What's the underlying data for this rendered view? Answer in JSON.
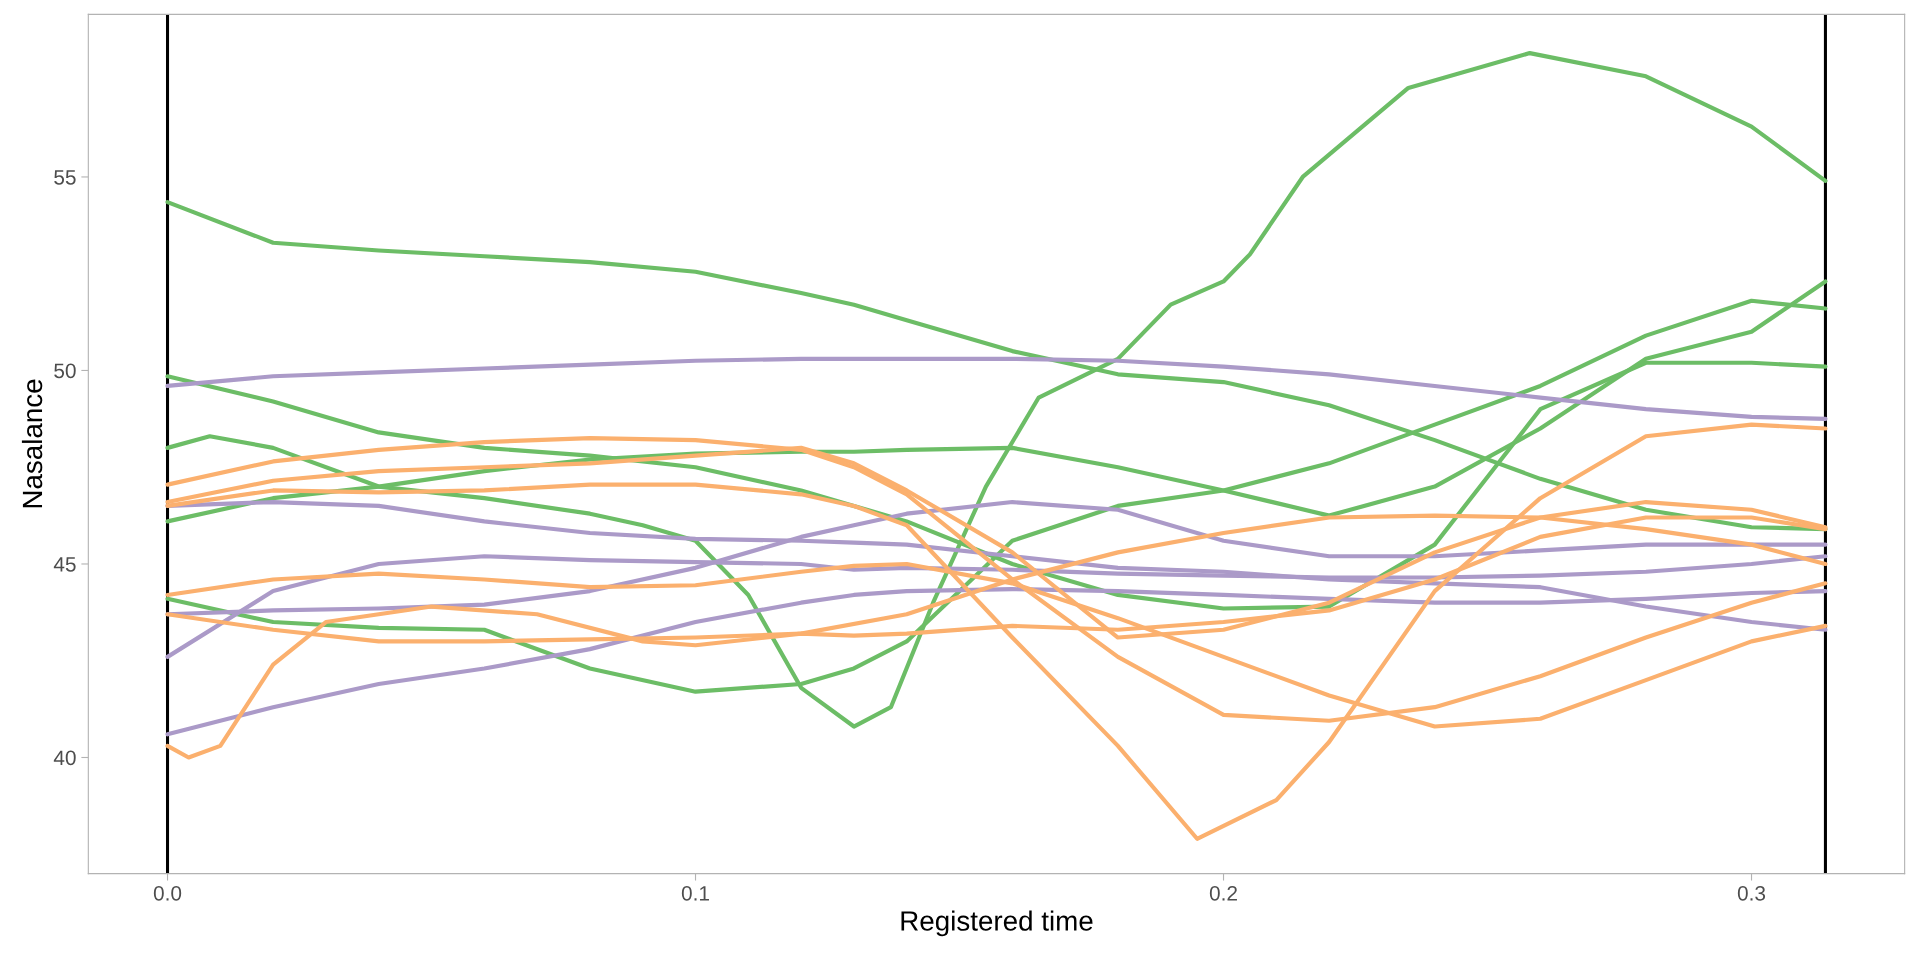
{
  "chart_data": {
    "type": "line",
    "xlabel": "Registered time",
    "ylabel": "Nasalance",
    "grid": false,
    "line_style": "solid",
    "marker": "none",
    "xlim": [
      -0.015,
      0.329
    ],
    "ylim": [
      37.0,
      59.2
    ],
    "xticks": [
      {
        "value": 0,
        "label": "0.0"
      },
      0.1,
      0.2,
      0.3
    ],
    "yticks": [
      40,
      45,
      50,
      55
    ],
    "ref_lines": [
      {
        "axis": "x",
        "value": 0,
        "color": "#000000"
      },
      {
        "axis": "x",
        "value": 0.314,
        "color": "#000000"
      }
    ],
    "x": [
      0,
      0.02,
      0.04,
      0.06,
      0.08,
      0.1,
      0.12,
      0.13,
      0.14,
      0.16,
      0.18,
      0.2,
      0.22,
      0.24,
      0.26,
      0.28,
      0.3,
      0.314
    ],
    "series": [
      {
        "color": "#6cbd66",
        "values": [
          54.35,
          53.3,
          53.1,
          52.95,
          52.8,
          52.55,
          52.0,
          51.7,
          51.3,
          50.5,
          49.9,
          49.7,
          49.1,
          48.2,
          47.2,
          46.4,
          45.95,
          45.9
        ]
      },
      {
        "color": "#6cbd66",
        "values": [
          49.85,
          49.2,
          48.4,
          48.0,
          47.8,
          47.5,
          46.9,
          46.5,
          46.1,
          45.0,
          44.2,
          43.85,
          43.9,
          45.5,
          49.0,
          50.2,
          50.2,
          50.1
        ]
      },
      {
        "color": "#6cbd66",
        "x": [
          0,
          0.008,
          0.02,
          0.04,
          0.06,
          0.08,
          0.09,
          0.1,
          0.11,
          0.12,
          0.13,
          0.137,
          0.145,
          0.155,
          0.165,
          0.18,
          0.19,
          0.2,
          0.205,
          0.215,
          0.235,
          0.258,
          0.28,
          0.3,
          0.314
        ],
        "values": [
          48.0,
          48.3,
          48.0,
          47.0,
          46.7,
          46.3,
          46.0,
          45.6,
          44.2,
          41.8,
          40.8,
          41.3,
          44.0,
          47.0,
          49.3,
          50.3,
          51.7,
          52.3,
          53.0,
          55.0,
          57.3,
          58.2,
          57.6,
          56.3,
          54.9
        ]
      },
      {
        "color": "#6cbd66",
        "values": [
          46.1,
          46.7,
          47.0,
          47.4,
          47.7,
          47.85,
          47.9,
          47.9,
          47.95,
          48.0,
          47.5,
          46.9,
          46.25,
          47.0,
          48.5,
          50.3,
          51.0,
          52.3
        ]
      },
      {
        "color": "#6cbd66",
        "values": [
          44.1,
          43.5,
          43.35,
          43.3,
          42.3,
          41.7,
          41.9,
          42.3,
          43.0,
          45.6,
          46.5,
          46.9,
          47.6,
          48.6,
          49.6,
          50.9,
          51.8,
          51.6
        ]
      },
      {
        "color": "#ab9ac8",
        "values": [
          49.6,
          49.85,
          49.95,
          50.05,
          50.15,
          50.25,
          50.3,
          50.3,
          50.3,
          50.3,
          50.25,
          50.1,
          49.9,
          49.6,
          49.3,
          49.0,
          48.8,
          48.75
        ]
      },
      {
        "color": "#ab9ac8",
        "values": [
          46.5,
          46.6,
          46.5,
          46.1,
          45.8,
          45.65,
          45.6,
          45.55,
          45.5,
          45.2,
          44.9,
          44.8,
          44.6,
          44.5,
          44.4,
          43.9,
          43.5,
          43.3
        ]
      },
      {
        "color": "#ab9ac8",
        "values": [
          43.7,
          43.8,
          43.85,
          43.95,
          44.3,
          44.9,
          45.7,
          46.0,
          46.3,
          46.6,
          46.4,
          45.6,
          45.2,
          45.2,
          45.35,
          45.5,
          45.5,
          45.5
        ]
      },
      {
        "color": "#ab9ac8",
        "values": [
          42.6,
          44.3,
          45.0,
          45.2,
          45.1,
          45.05,
          45.0,
          44.85,
          44.9,
          44.85,
          44.75,
          44.7,
          44.65,
          44.65,
          44.7,
          44.8,
          45.0,
          45.2
        ]
      },
      {
        "color": "#ab9ac8",
        "values": [
          40.6,
          41.3,
          41.9,
          42.3,
          42.8,
          43.5,
          44.0,
          44.2,
          44.3,
          44.35,
          44.3,
          44.2,
          44.1,
          44.0,
          44.0,
          44.1,
          44.25,
          44.3
        ]
      },
      {
        "color": "#fbb06e",
        "values": [
          47.05,
          47.65,
          47.95,
          48.15,
          48.25,
          48.2,
          47.95,
          47.5,
          46.8,
          44.6,
          42.6,
          41.1,
          40.95,
          41.3,
          42.1,
          43.1,
          44.0,
          44.5
        ]
      },
      {
        "color": "#fbb06e",
        "values": [
          46.6,
          47.15,
          47.4,
          47.5,
          47.6,
          47.8,
          48.0,
          47.6,
          46.9,
          45.3,
          43.1,
          43.3,
          44.0,
          45.3,
          46.2,
          46.6,
          46.4,
          45.95
        ]
      },
      {
        "color": "#fbb06e",
        "x": [
          0,
          0.02,
          0.04,
          0.06,
          0.08,
          0.1,
          0.12,
          0.13,
          0.14,
          0.16,
          0.18,
          0.195,
          0.21,
          0.22,
          0.24,
          0.26,
          0.28,
          0.3,
          0.314
        ],
        "values": [
          46.5,
          46.9,
          46.85,
          46.9,
          47.05,
          47.05,
          46.8,
          46.5,
          46.0,
          43.1,
          40.3,
          37.9,
          38.9,
          40.4,
          44.3,
          46.7,
          48.3,
          48.6,
          48.5
        ]
      },
      {
        "color": "#fbb06e",
        "values": [
          44.2,
          44.6,
          44.75,
          44.6,
          44.4,
          44.45,
          44.8,
          44.95,
          45.0,
          44.5,
          43.6,
          42.6,
          41.6,
          40.8,
          41.0,
          42.0,
          43.0,
          43.4
        ]
      },
      {
        "color": "#fbb06e",
        "values": [
          43.7,
          43.3,
          43.0,
          43.0,
          43.05,
          43.1,
          43.2,
          43.15,
          43.2,
          43.4,
          43.3,
          43.5,
          43.8,
          44.6,
          45.7,
          46.2,
          46.2,
          45.9
        ]
      },
      {
        "color": "#fbb06e",
        "x": [
          0,
          0.004,
          0.01,
          0.02,
          0.03,
          0.05,
          0.07,
          0.09,
          0.1,
          0.12,
          0.14,
          0.16,
          0.18,
          0.2,
          0.22,
          0.24,
          0.26,
          0.28,
          0.3,
          0.314
        ],
        "values": [
          40.3,
          40.0,
          40.3,
          42.4,
          43.5,
          43.9,
          43.7,
          43.0,
          42.9,
          43.2,
          43.7,
          44.6,
          45.3,
          45.8,
          46.2,
          46.25,
          46.2,
          45.9,
          45.5,
          45.0
        ]
      }
    ]
  }
}
